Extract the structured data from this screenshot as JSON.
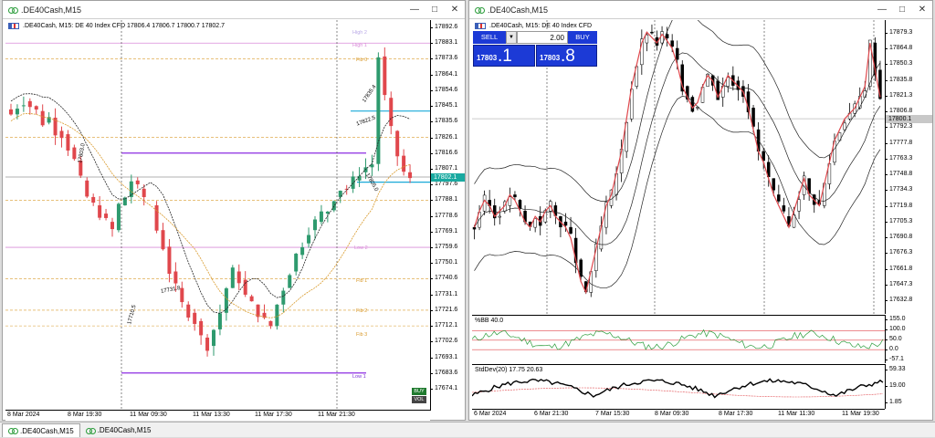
{
  "left_window": {
    "title": ".DE40Cash,M15",
    "header": ".DE40Cash, M15:  DE 40 Index CFD  17806.4 17806.7 17800.7 17802.7",
    "price_axis": [
      "17892.6",
      "17883.1",
      "17873.6",
      "17864.1",
      "17854.6",
      "17845.1",
      "17835.6",
      "17826.1",
      "17816.6",
      "17807.1",
      "17797.6",
      "17788.1",
      "17778.6",
      "17769.1",
      "17759.6",
      "17750.1",
      "17740.6",
      "17731.1",
      "17721.6",
      "17712.1",
      "17702.6",
      "17693.1",
      "17683.6",
      "17674.1"
    ],
    "current_price_tag": "17802.1",
    "time_axis": [
      "8 Mar 2024",
      "8 Mar 19:30",
      "11 Mar 09:30",
      "11 Mar 13:30",
      "11 Mar 17:30",
      "11 Mar 21:30"
    ],
    "levels": [
      "High 2",
      "High 1",
      "Fib 0",
      "Low 2",
      "Fib 1",
      "Fib 2",
      "Fib 3",
      "Low 1"
    ],
    "badges": [
      "BUY",
      "VOL"
    ],
    "trade_labels": [
      "17835.4",
      "17822.5",
      "17805.0",
      "17803.0",
      "17731.8",
      "17710.5"
    ]
  },
  "right_window": {
    "title": ".DE40Cash,M15",
    "header": ".DE40Cash, M15:  DE 40 Index CFD",
    "one_click": {
      "sell_label": "SELL",
      "buy_label": "BUY",
      "volume": "2.00",
      "sell_price_small": "17803",
      "sell_price_big": ".1",
      "buy_price_small": "17803",
      "buy_price_big": ".8"
    },
    "price_axis": [
      "17879.3",
      "17864.8",
      "17850.3",
      "17835.8",
      "17821.3",
      "17806.8",
      "17792.3",
      "17777.8",
      "17763.3",
      "17748.8",
      "17734.3",
      "17719.8",
      "17705.3",
      "17690.8",
      "17676.3",
      "17661.8",
      "17647.3",
      "17632.8"
    ],
    "current_price_tag": "17800.1",
    "time_axis": [
      "6 Mar 2024",
      "6 Mar 21:30",
      "7 Mar 15:30",
      "8 Mar 09:30",
      "8 Mar 17:30",
      "11 Mar 11:30",
      "11 Mar 19:30"
    ],
    "bb_indicator": {
      "label": "%BB 40.0",
      "axis": [
        "155.0",
        "100.0",
        "50.0",
        "0.0",
        "-57.1"
      ]
    },
    "stddev_indicator": {
      "label": "StdDev(20) 17.75 20.63",
      "axis": [
        "59.33",
        "19.00",
        "1.85"
      ]
    }
  },
  "tabs": [
    {
      "label": ".DE40Cash,M15",
      "active": true
    },
    {
      "label": ".DE40Cash,M15",
      "active": false
    }
  ],
  "colors": {
    "bull": "#2e9a6e",
    "bear": "#e0474c",
    "accent": "#1c3ad6",
    "level": "#8b2be2",
    "cyan": "#19a9d8"
  }
}
